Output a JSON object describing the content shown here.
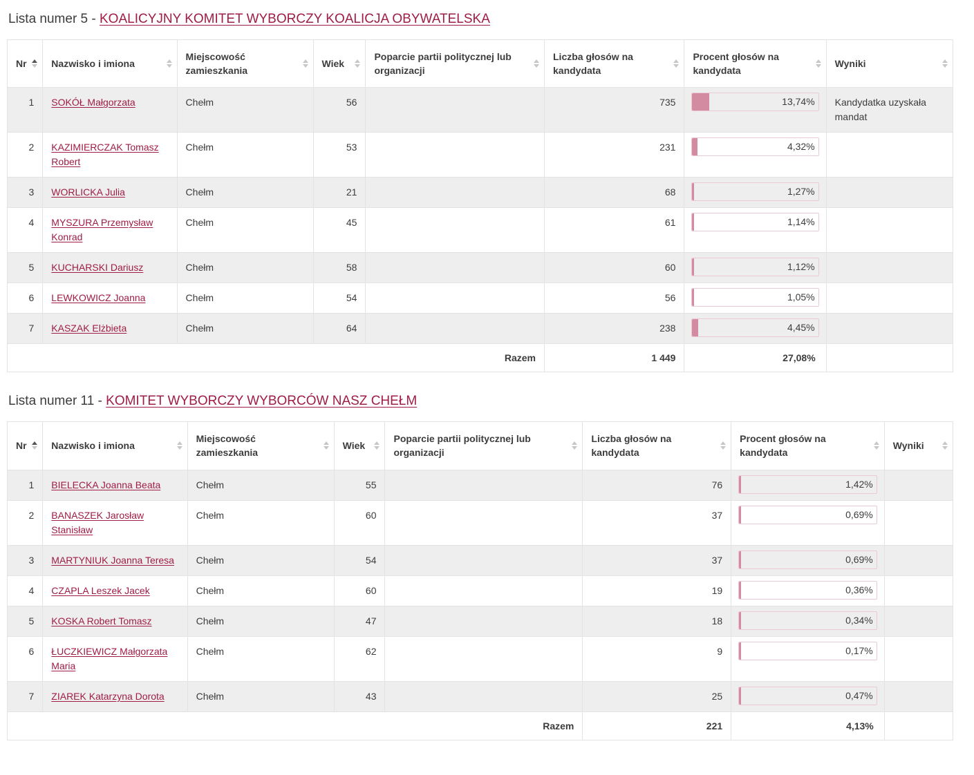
{
  "colors": {
    "link": "#a01c44",
    "bar_fill": "#d28ba0",
    "bar_border": "#eac9d3",
    "row_stripe": "#eeeeee",
    "border": "#e3e3e3",
    "text": "#3c3c3c",
    "sort_active": "#555555",
    "sort_inactive": "#c7c7c7"
  },
  "sections": [
    {
      "title_prefix": "Lista numer 5 - ",
      "committee_name": "KOALICYJNY KOMITET WYBORCZY KOALICJA OBYWATELSKA",
      "columns": [
        {
          "label": "Nr",
          "sort": "asc"
        },
        {
          "label": "Nazwisko i imiona",
          "sort": "none"
        },
        {
          "label": "Miejscowość zamieszkania",
          "sort": "none"
        },
        {
          "label": "Wiek",
          "sort": "none"
        },
        {
          "label": "Poparcie partii politycznej lub organizacji",
          "sort": "none"
        },
        {
          "label": "Liczba głosów na kandydata",
          "sort": "none"
        },
        {
          "label": "Procent głosów na kandydata",
          "sort": "none"
        },
        {
          "label": "Wyniki",
          "sort": "none"
        }
      ],
      "rows": [
        {
          "nr": "1",
          "name": "SOKÓŁ Małgorzata",
          "city": "Chełm",
          "age": "56",
          "support": "",
          "votes": "735",
          "percent": "13,74%",
          "percent_value": 13.74,
          "result": "Kandydatka uzyskała mandat"
        },
        {
          "nr": "2",
          "name": "KAZIMIERCZAK Tomasz Robert",
          "city": "Chełm",
          "age": "53",
          "support": "",
          "votes": "231",
          "percent": "4,32%",
          "percent_value": 4.32,
          "result": ""
        },
        {
          "nr": "3",
          "name": "WORLICKA Julia",
          "city": "Chełm",
          "age": "21",
          "support": "",
          "votes": "68",
          "percent": "1,27%",
          "percent_value": 1.27,
          "result": ""
        },
        {
          "nr": "4",
          "name": "MYSZURA Przemysław Konrad",
          "city": "Chełm",
          "age": "45",
          "support": "",
          "votes": "61",
          "percent": "1,14%",
          "percent_value": 1.14,
          "result": ""
        },
        {
          "nr": "5",
          "name": "KUCHARSKI Dariusz",
          "city": "Chełm",
          "age": "58",
          "support": "",
          "votes": "60",
          "percent": "1,12%",
          "percent_value": 1.12,
          "result": ""
        },
        {
          "nr": "6",
          "name": "LEWKOWICZ Joanna",
          "city": "Chełm",
          "age": "54",
          "support": "",
          "votes": "56",
          "percent": "1,05%",
          "percent_value": 1.05,
          "result": ""
        },
        {
          "nr": "7",
          "name": "KASZAK Elżbieta",
          "city": "Chełm",
          "age": "64",
          "support": "",
          "votes": "238",
          "percent": "4,45%",
          "percent_value": 4.45,
          "result": ""
        }
      ],
      "total": {
        "label": "Razem",
        "votes": "1 449",
        "percent": "27,08%"
      }
    },
    {
      "title_prefix": "Lista numer 11 - ",
      "committee_name": "KOMITET WYBORCZY WYBORCÓW NASZ CHEŁM",
      "columns": [
        {
          "label": "Nr",
          "sort": "asc"
        },
        {
          "label": "Nazwisko i imiona",
          "sort": "none"
        },
        {
          "label": "Miejscowość zamieszkania",
          "sort": "none"
        },
        {
          "label": "Wiek",
          "sort": "none"
        },
        {
          "label": "Poparcie partii politycznej lub organizacji",
          "sort": "none"
        },
        {
          "label": "Liczba głosów na kandydata",
          "sort": "none"
        },
        {
          "label": "Procent głosów na kandydata",
          "sort": "none"
        },
        {
          "label": "Wyniki",
          "sort": "none"
        }
      ],
      "rows": [
        {
          "nr": "1",
          "name": "BIELECKA Joanna Beata",
          "city": "Chełm",
          "age": "55",
          "support": "",
          "votes": "76",
          "percent": "1,42%",
          "percent_value": 1.42,
          "result": ""
        },
        {
          "nr": "2",
          "name": "BANASZEK Jarosław Stanisław",
          "city": "Chełm",
          "age": "60",
          "support": "",
          "votes": "37",
          "percent": "0,69%",
          "percent_value": 0.69,
          "result": ""
        },
        {
          "nr": "3",
          "name": "MARTYNIUK Joanna Teresa",
          "city": "Chełm",
          "age": "54",
          "support": "",
          "votes": "37",
          "percent": "0,69%",
          "percent_value": 0.69,
          "result": ""
        },
        {
          "nr": "4",
          "name": "CZAPLA Leszek Jacek",
          "city": "Chełm",
          "age": "60",
          "support": "",
          "votes": "19",
          "percent": "0,36%",
          "percent_value": 0.36,
          "result": ""
        },
        {
          "nr": "5",
          "name": "KOSKA Robert Tomasz",
          "city": "Chełm",
          "age": "47",
          "support": "",
          "votes": "18",
          "percent": "0,34%",
          "percent_value": 0.34,
          "result": ""
        },
        {
          "nr": "6",
          "name": "ŁUCZKIEWICZ Małgorzata Maria",
          "city": "Chełm",
          "age": "62",
          "support": "",
          "votes": "9",
          "percent": "0,17%",
          "percent_value": 0.17,
          "result": ""
        },
        {
          "nr": "7",
          "name": "ZIAREK Katarzyna Dorota",
          "city": "Chełm",
          "age": "43",
          "support": "",
          "votes": "25",
          "percent": "0,47%",
          "percent_value": 0.47,
          "result": ""
        }
      ],
      "total": {
        "label": "Razem",
        "votes": "221",
        "percent": "4,13%"
      }
    }
  ]
}
